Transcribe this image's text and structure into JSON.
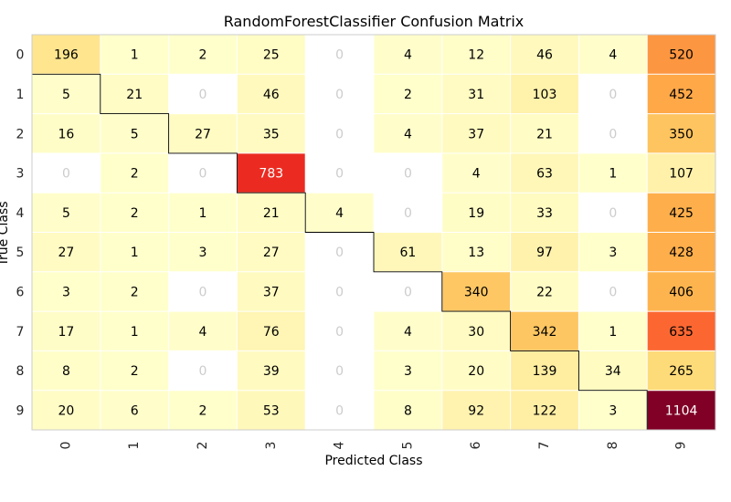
{
  "chart_data": {
    "type": "heatmap",
    "title": "RandomForestClassifier Confusion Matrix",
    "xlabel": "Predicted Class",
    "ylabel": "True Class",
    "x_categories": [
      "0",
      "1",
      "2",
      "3",
      "4",
      "5",
      "6",
      "7",
      "8",
      "9"
    ],
    "y_categories": [
      "0",
      "1",
      "2",
      "3",
      "4",
      "5",
      "6",
      "7",
      "8",
      "9"
    ],
    "values": [
      [
        196,
        1,
        2,
        25,
        0,
        4,
        12,
        46,
        4,
        520
      ],
      [
        5,
        21,
        0,
        46,
        0,
        2,
        31,
        103,
        0,
        452
      ],
      [
        16,
        5,
        27,
        35,
        0,
        4,
        37,
        21,
        0,
        350
      ],
      [
        0,
        2,
        0,
        783,
        0,
        0,
        4,
        63,
        1,
        107
      ],
      [
        5,
        2,
        1,
        21,
        4,
        0,
        19,
        33,
        0,
        425
      ],
      [
        27,
        1,
        3,
        27,
        0,
        61,
        13,
        97,
        3,
        428
      ],
      [
        3,
        2,
        0,
        37,
        0,
        0,
        340,
        22,
        0,
        406
      ],
      [
        17,
        1,
        4,
        76,
        0,
        4,
        30,
        342,
        1,
        635
      ],
      [
        8,
        2,
        0,
        39,
        0,
        3,
        20,
        139,
        34,
        265
      ],
      [
        20,
        6,
        2,
        53,
        0,
        8,
        92,
        122,
        3,
        1104
      ]
    ],
    "colormap": "YlOrRd",
    "zero_cell_color": "#ffffff",
    "zero_text_color": "#cccccc",
    "diagonal_outline": true
  }
}
